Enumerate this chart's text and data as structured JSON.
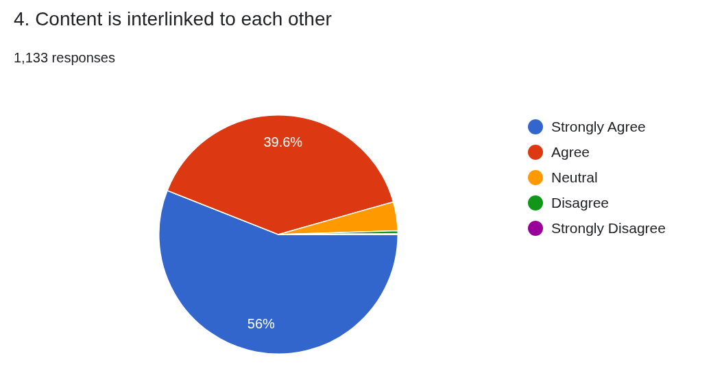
{
  "chart_data": {
    "type": "pie",
    "title": "4. Content is interlinked to each other",
    "subtitle": "1,133 responses",
    "categories": [
      "Strongly Agree",
      "Agree",
      "Neutral",
      "Disagree",
      "Strongly Disagree"
    ],
    "values": [
      56,
      39.6,
      3.9,
      0.4,
      0.1
    ],
    "colors": [
      "#3366cc",
      "#dc3912",
      "#ff9900",
      "#109618",
      "#990099"
    ],
    "value_labels": [
      "56%",
      "39.6%",
      null,
      null,
      null
    ],
    "legend": "right"
  }
}
